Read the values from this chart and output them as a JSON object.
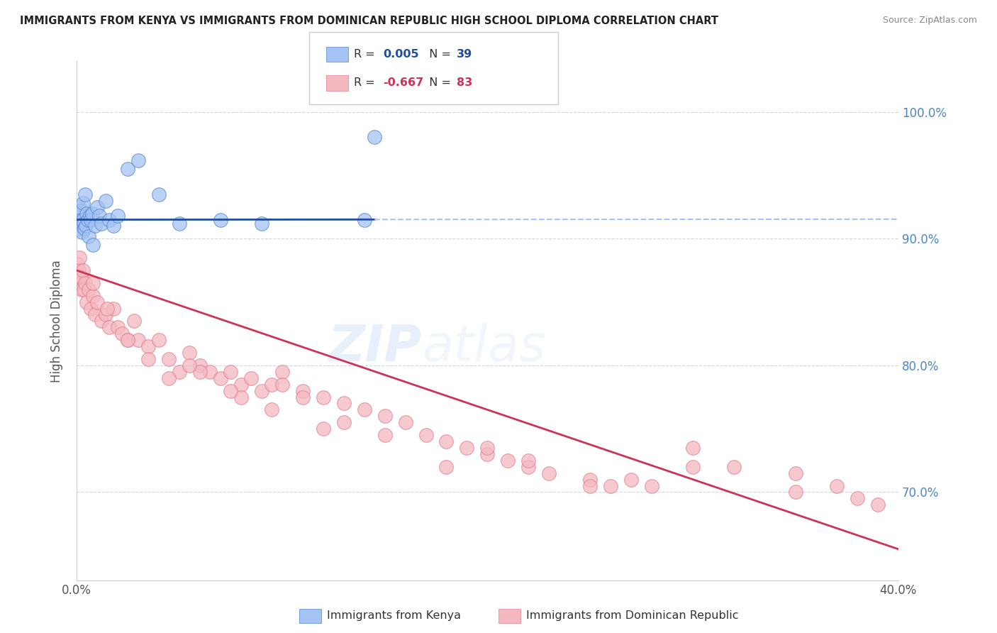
{
  "title": "IMMIGRANTS FROM KENYA VS IMMIGRANTS FROM DOMINICAN REPUBLIC HIGH SCHOOL DIPLOMA CORRELATION CHART",
  "source": "Source: ZipAtlas.com",
  "ylabel": "High School Diploma",
  "xlim": [
    0.0,
    40.0
  ],
  "ylim": [
    63.0,
    104.0
  ],
  "y_ticks": [
    70.0,
    80.0,
    90.0,
    100.0
  ],
  "y_tick_labels": [
    "70.0%",
    "80.0%",
    "90.0%",
    "100.0%"
  ],
  "x_ticks": [
    0.0,
    10.0,
    20.0,
    30.0,
    40.0
  ],
  "x_tick_labels": [
    "0.0%",
    "",
    "",
    "",
    "40.0%"
  ],
  "blue_color": "#a4c2f4",
  "pink_color": "#f4b8c1",
  "blue_line_color": "#1f4e9e",
  "pink_line_color": "#cc3355",
  "dashed_line_color": "#a4c2f4",
  "watermark_zip": "ZIP",
  "watermark_atlas": "atlas",
  "kenya_x": [
    0.05,
    0.08,
    0.1,
    0.12,
    0.15,
    0.18,
    0.2,
    0.22,
    0.25,
    0.28,
    0.3,
    0.32,
    0.35,
    0.38,
    0.4,
    0.45,
    0.5,
    0.55,
    0.6,
    0.65,
    0.7,
    0.75,
    0.8,
    0.9,
    1.0,
    1.1,
    1.2,
    1.4,
    1.6,
    1.8,
    2.0,
    2.5,
    3.0,
    4.0,
    5.0,
    7.0,
    9.0,
    14.0,
    14.5
  ],
  "kenya_y": [
    91.5,
    92.0,
    91.8,
    92.5,
    91.2,
    90.8,
    92.2,
    91.5,
    91.0,
    90.5,
    92.8,
    91.5,
    91.2,
    90.8,
    93.5,
    91.0,
    92.0,
    91.5,
    90.2,
    91.8,
    91.5,
    92.0,
    89.5,
    91.0,
    92.5,
    91.8,
    91.2,
    93.0,
    91.5,
    91.0,
    91.8,
    95.5,
    96.2,
    93.5,
    91.2,
    91.5,
    91.2,
    91.5,
    98.0
  ],
  "dr_x": [
    0.05,
    0.1,
    0.15,
    0.18,
    0.2,
    0.22,
    0.25,
    0.3,
    0.35,
    0.4,
    0.5,
    0.6,
    0.7,
    0.8,
    0.9,
    1.0,
    1.2,
    1.4,
    1.6,
    1.8,
    2.0,
    2.2,
    2.5,
    2.8,
    3.0,
    3.5,
    4.0,
    4.5,
    5.0,
    5.5,
    6.0,
    6.5,
    7.0,
    7.5,
    8.0,
    8.5,
    9.0,
    9.5,
    10.0,
    11.0,
    12.0,
    13.0,
    14.0,
    15.0,
    16.0,
    17.0,
    18.0,
    19.0,
    20.0,
    21.0,
    22.0,
    23.0,
    25.0,
    26.0,
    27.0,
    28.0,
    30.0,
    32.0,
    35.0,
    37.0,
    0.8,
    1.5,
    2.5,
    3.5,
    4.5,
    6.0,
    8.0,
    10.0,
    12.0,
    15.0,
    18.0,
    20.0,
    22.0,
    25.0,
    30.0,
    35.0,
    38.0,
    39.0,
    5.5,
    7.5,
    9.5,
    11.0,
    13.0
  ],
  "dr_y": [
    88.0,
    87.5,
    88.5,
    87.0,
    86.5,
    87.0,
    86.0,
    87.5,
    86.0,
    86.5,
    85.0,
    86.0,
    84.5,
    85.5,
    84.0,
    85.0,
    83.5,
    84.0,
    83.0,
    84.5,
    83.0,
    82.5,
    82.0,
    83.5,
    82.0,
    81.5,
    82.0,
    80.5,
    79.5,
    81.0,
    80.0,
    79.5,
    79.0,
    79.5,
    78.5,
    79.0,
    78.0,
    78.5,
    79.5,
    78.0,
    77.5,
    77.0,
    76.5,
    76.0,
    75.5,
    74.5,
    74.0,
    73.5,
    73.0,
    72.5,
    72.0,
    71.5,
    71.0,
    70.5,
    71.0,
    70.5,
    73.5,
    72.0,
    71.5,
    70.5,
    86.5,
    84.5,
    82.0,
    80.5,
    79.0,
    79.5,
    77.5,
    78.5,
    75.0,
    74.5,
    72.0,
    73.5,
    72.5,
    70.5,
    72.0,
    70.0,
    69.5,
    69.0,
    80.0,
    78.0,
    76.5,
    77.5,
    75.5
  ],
  "kenya_line_x_solid_end": 14.5,
  "blue_line_y_intercept": 91.5,
  "blue_line_slope": 0.001,
  "pink_line_y0": 87.5,
  "pink_line_y1": 65.5
}
